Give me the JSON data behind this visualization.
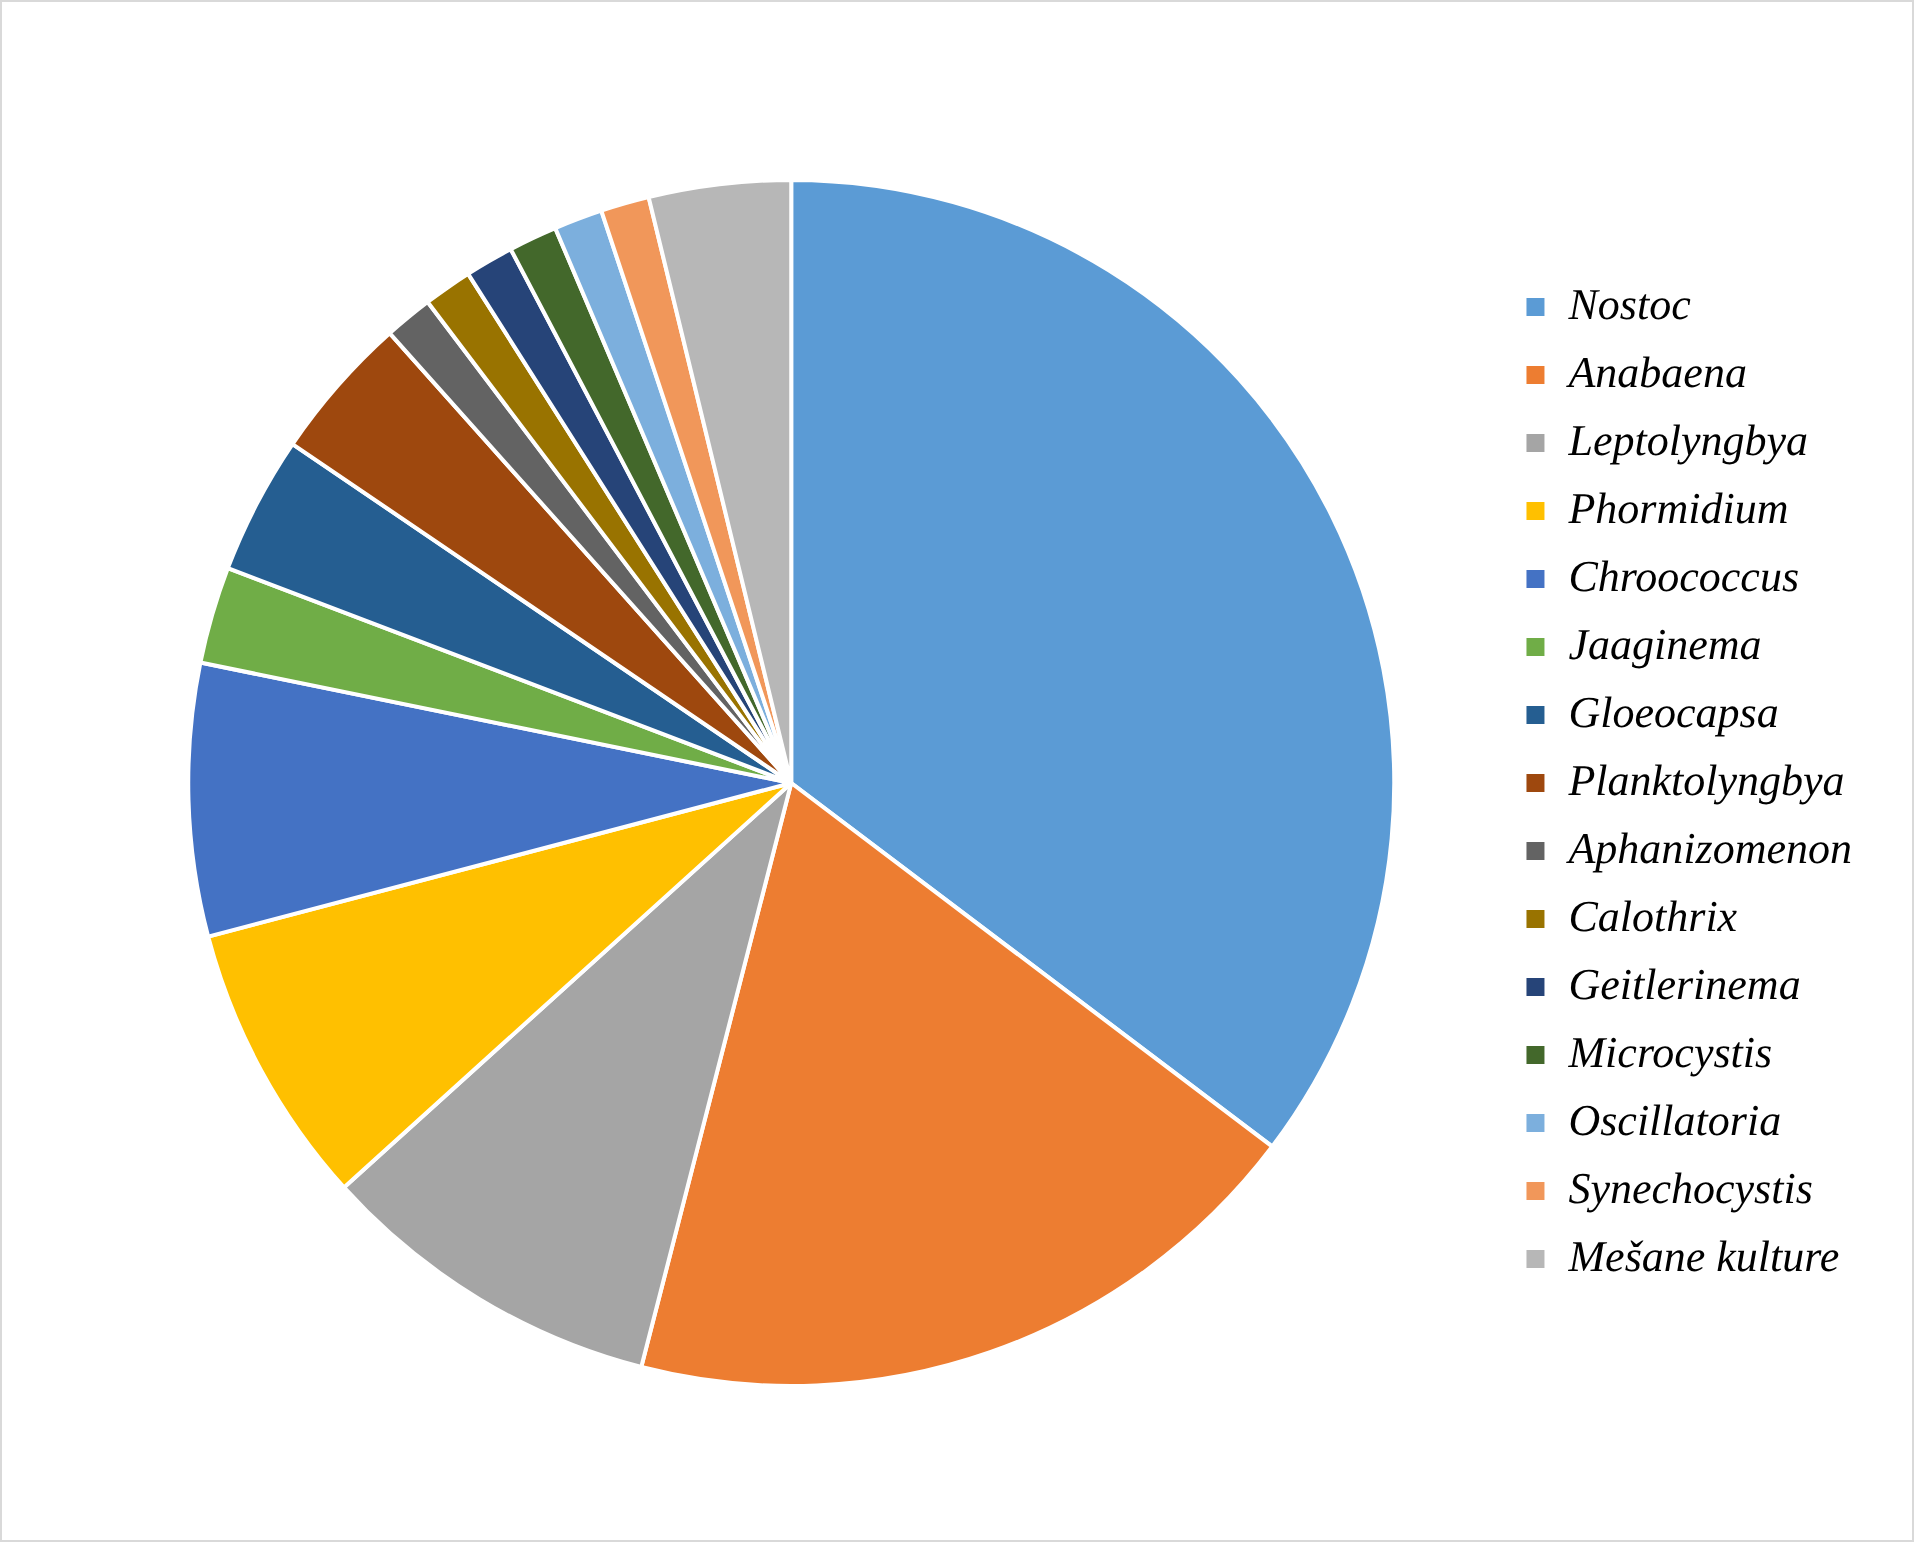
{
  "chart_data": {
    "type": "pie",
    "categories": [
      "Nostoc",
      "Anabaena",
      "Leptolyngbya",
      "Phormidium",
      "Chroococcus",
      "Jaaginema",
      "Gloeocapsa",
      "Planktolyngbya",
      "Aphanizomenon",
      "Calothrix",
      "Geitlerinema",
      "Microcystis",
      "Oscillatoria",
      "Synechocystis",
      "Mešane kulture"
    ],
    "values": [
      35.3,
      18.7,
      9.3,
      7.6,
      7.3,
      2.6,
      3.7,
      3.9,
      1.3,
      1.3,
      1.3,
      1.3,
      1.3,
      1.3,
      3.8
    ],
    "colors": [
      "#5b9bd5",
      "#ed7d31",
      "#a5a5a5",
      "#ffc000",
      "#4472c4",
      "#70ad47",
      "#255e91",
      "#9e480e",
      "#636363",
      "#997300",
      "#264478",
      "#43682b",
      "#7cafdd",
      "#f1975a",
      "#b7b7b7"
    ],
    "legend": "right"
  }
}
